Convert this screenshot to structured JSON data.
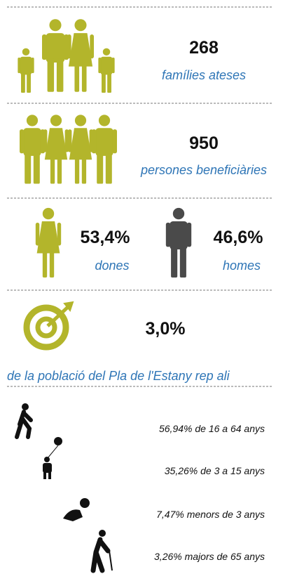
{
  "families": {
    "value": "268",
    "label": "famílies ateses"
  },
  "persons": {
    "value": "950",
    "label": "persones beneficiàries"
  },
  "women": {
    "value": "53,4%",
    "label": "dones"
  },
  "men": {
    "value": "46,6%",
    "label": "homes"
  },
  "population": {
    "value": "3,0%",
    "label": "de la població del Pla de l'Estany rep ali"
  },
  "ages": [
    "56,94% de 16 a 64 anys",
    "35,26% de 3 a 15 anys",
    "7,47% menors de 3 anys",
    "3,26% majors de 65 anys"
  ]
}
